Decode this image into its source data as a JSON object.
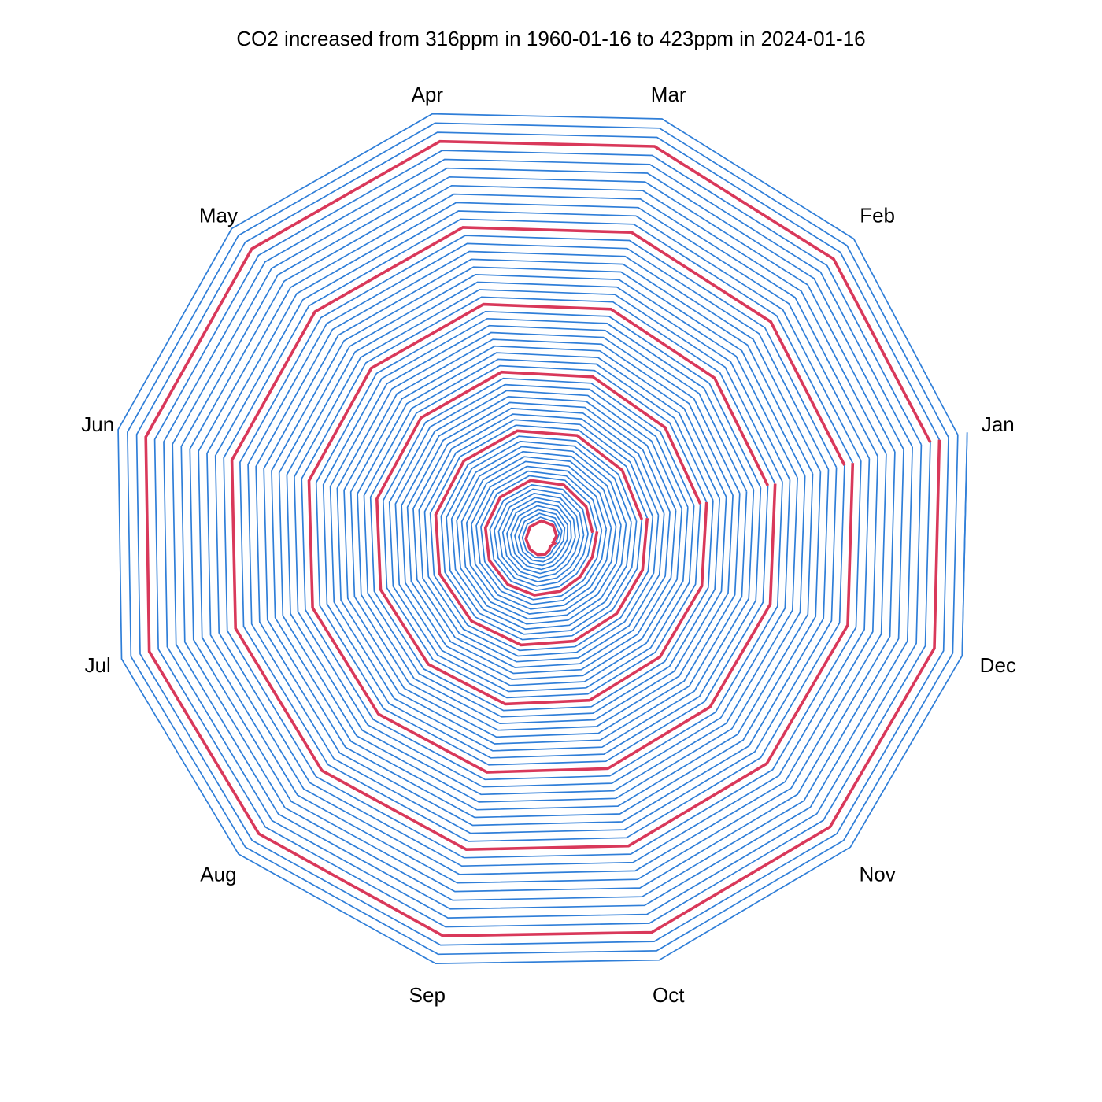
{
  "chart_data": {
    "type": "line",
    "subtype": "polar-spiral",
    "title": "CO2 increased from 316ppm in 1960-01-16 to 423ppm in 2024-01-16",
    "angular_labels": [
      "Jan",
      "Feb",
      "Mar",
      "Apr",
      "May",
      "Jun",
      "Jul",
      "Aug",
      "Sep",
      "Oct",
      "Nov",
      "Dec"
    ],
    "start": {
      "date": "1960-01-16",
      "ppm": 316
    },
    "end": {
      "date": "2024-01-16",
      "ppm": 423
    },
    "series_color": "#2f7ed8",
    "highlight_color": "#d9385a",
    "highlight_years": [
      1960,
      1970,
      1980,
      1990,
      2000,
      2010,
      2020
    ]
  }
}
